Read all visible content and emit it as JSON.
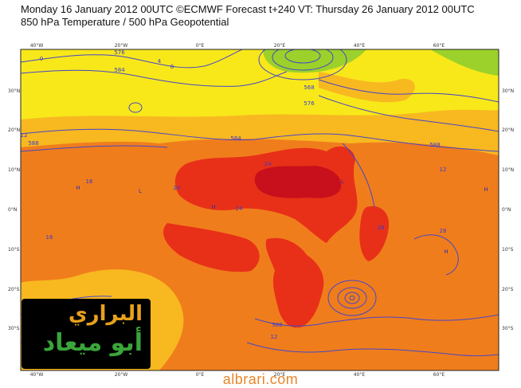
{
  "header": {
    "line1": "Monday 16 January 2012 00UTC ©ECMWF Forecast t+240 VT: Thursday 26 January 2012 00UTC",
    "line2": "850 hPa Temperature / 500 hPa Geopotential"
  },
  "map": {
    "lon_labels": [
      "40°W",
      "20°W",
      "0°E",
      "20°E",
      "40°E",
      "60°E"
    ],
    "lat_labels": [
      "30°N",
      "20°N",
      "10°N",
      "0°N",
      "10°S",
      "20°S",
      "30°S"
    ],
    "contour_labels": [
      "576",
      "584",
      "568",
      "576",
      "584",
      "588",
      "588",
      "588",
      "0",
      "4",
      "8",
      "12",
      "16",
      "20",
      "24",
      "24",
      "28",
      "28",
      "16",
      "12",
      "12"
    ],
    "pressure_centers": [
      "H",
      "H",
      "L",
      "L",
      "H",
      "L",
      "H"
    ],
    "colors": {
      "ocean_yellow": "#f8e81a",
      "light_orange": "#f8b820",
      "orange": "#f07d1c",
      "red": "#e83018",
      "dark_red": "#c8101c",
      "green": "#9bd12a",
      "contour": "#4646c8"
    }
  },
  "logo": {
    "arabic_line1": "البراري",
    "arabic_line2": "أبو ميعاد"
  },
  "watermark": "albrari.com"
}
